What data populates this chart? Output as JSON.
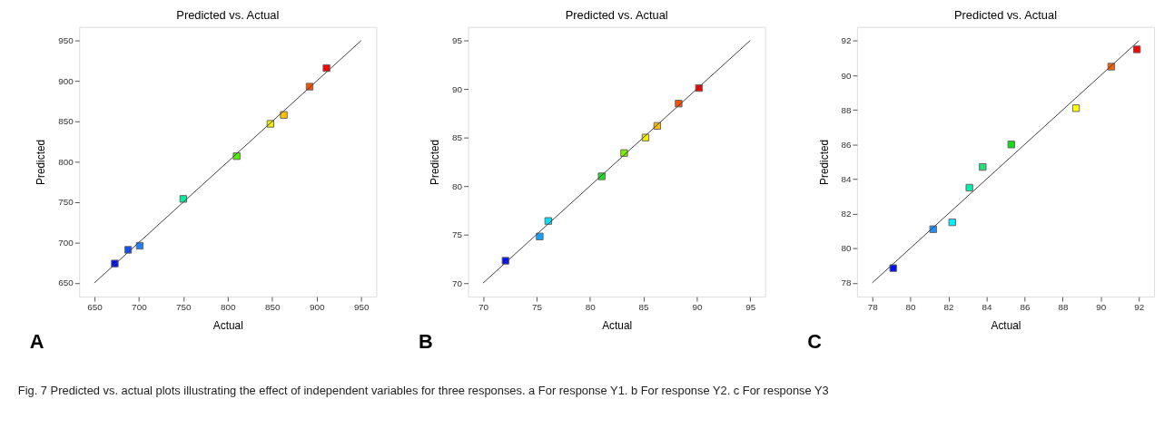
{
  "chart_data": [
    {
      "type": "scatter",
      "title": "Predicted vs. Actual",
      "xlabel": "Actual",
      "ylabel": "Predicted",
      "xlim": [
        633,
        967
      ],
      "ylim": [
        633,
        967
      ],
      "xticks": [
        650,
        700,
        750,
        800,
        850,
        900,
        950
      ],
      "yticks": [
        650,
        700,
        750,
        800,
        850,
        900,
        950
      ],
      "grid": false,
      "annotations": [
        "A"
      ],
      "series": [
        {
          "marker": "square",
          "x": [
            673,
            688,
            701,
            750,
            810,
            848,
            863,
            892,
            911
          ],
          "values": [
            674,
            691,
            696,
            754,
            807,
            847,
            858,
            893,
            916
          ],
          "colors": [
            "#0010ff",
            "#1050ff",
            "#1e80ff",
            "#00f0a0",
            "#50f000",
            "#f0f000",
            "#ffc000",
            "#ff5000",
            "#ff0000"
          ]
        },
        {
          "type": "line",
          "marker": "none",
          "x": [
            650,
            950
          ],
          "values": [
            650,
            950
          ],
          "color": "#404040"
        }
      ]
    },
    {
      "type": "scatter",
      "title": "Predicted vs. Actual",
      "xlabel": "Actual",
      "ylabel": "Predicted",
      "xlim": [
        68.6,
        96.4
      ],
      "ylim": [
        68.6,
        96.4
      ],
      "xticks": [
        70,
        75,
        80,
        85,
        90,
        95
      ],
      "yticks": [
        70,
        75,
        80,
        85,
        90,
        95
      ],
      "grid": false,
      "annotations": [
        "B"
      ],
      "series": [
        {
          "marker": "square",
          "x": [
            72.1,
            75.3,
            76.1,
            81.1,
            83.2,
            85.2,
            86.3,
            88.3,
            90.2
          ],
          "values": [
            72.3,
            74.8,
            76.4,
            81.0,
            83.4,
            85.0,
            86.2,
            88.5,
            90.1
          ],
          "colors": [
            "#0010ff",
            "#10a0ff",
            "#00e0ff",
            "#20e020",
            "#80f000",
            "#f0f000",
            "#ffc000",
            "#ff5000",
            "#ff0000"
          ]
        },
        {
          "type": "line",
          "marker": "none",
          "x": [
            70,
            95
          ],
          "values": [
            70,
            95
          ],
          "color": "#404040"
        }
      ]
    },
    {
      "type": "scatter",
      "title": "Predicted vs. Actual",
      "xlabel": "Actual",
      "ylabel": "Predicted",
      "xlim": [
        77.2,
        92.8
      ],
      "ylim": [
        77.2,
        92.8
      ],
      "xticks": [
        78,
        80,
        82,
        84,
        86,
        88,
        90,
        92
      ],
      "yticks": [
        78,
        80,
        82,
        84,
        86,
        88,
        90,
        92
      ],
      "grid": false,
      "annotations": [
        "C",
        "Fig. 7 Predicted vs. actual plots illustrating the effect of independent variables for three responses. a For response Y1. b For response Y2. c For response Y3"
      ],
      "series": [
        {
          "marker": "square",
          "x": [
            79.1,
            81.2,
            82.2,
            83.1,
            83.8,
            85.3,
            88.7,
            90.55,
            91.9
          ],
          "values": [
            78.85,
            81.1,
            81.5,
            83.5,
            84.7,
            86.0,
            88.1,
            90.5,
            91.5
          ],
          "colors": [
            "#0010ff",
            "#1e90ff",
            "#00f0ff",
            "#00f0b0",
            "#20e080",
            "#10e010",
            "#ffff00",
            "#ff6000",
            "#ff0000"
          ]
        },
        {
          "type": "line",
          "marker": "none",
          "x": [
            78,
            92
          ],
          "values": [
            78,
            92
          ],
          "color": "#404040"
        }
      ]
    }
  ]
}
